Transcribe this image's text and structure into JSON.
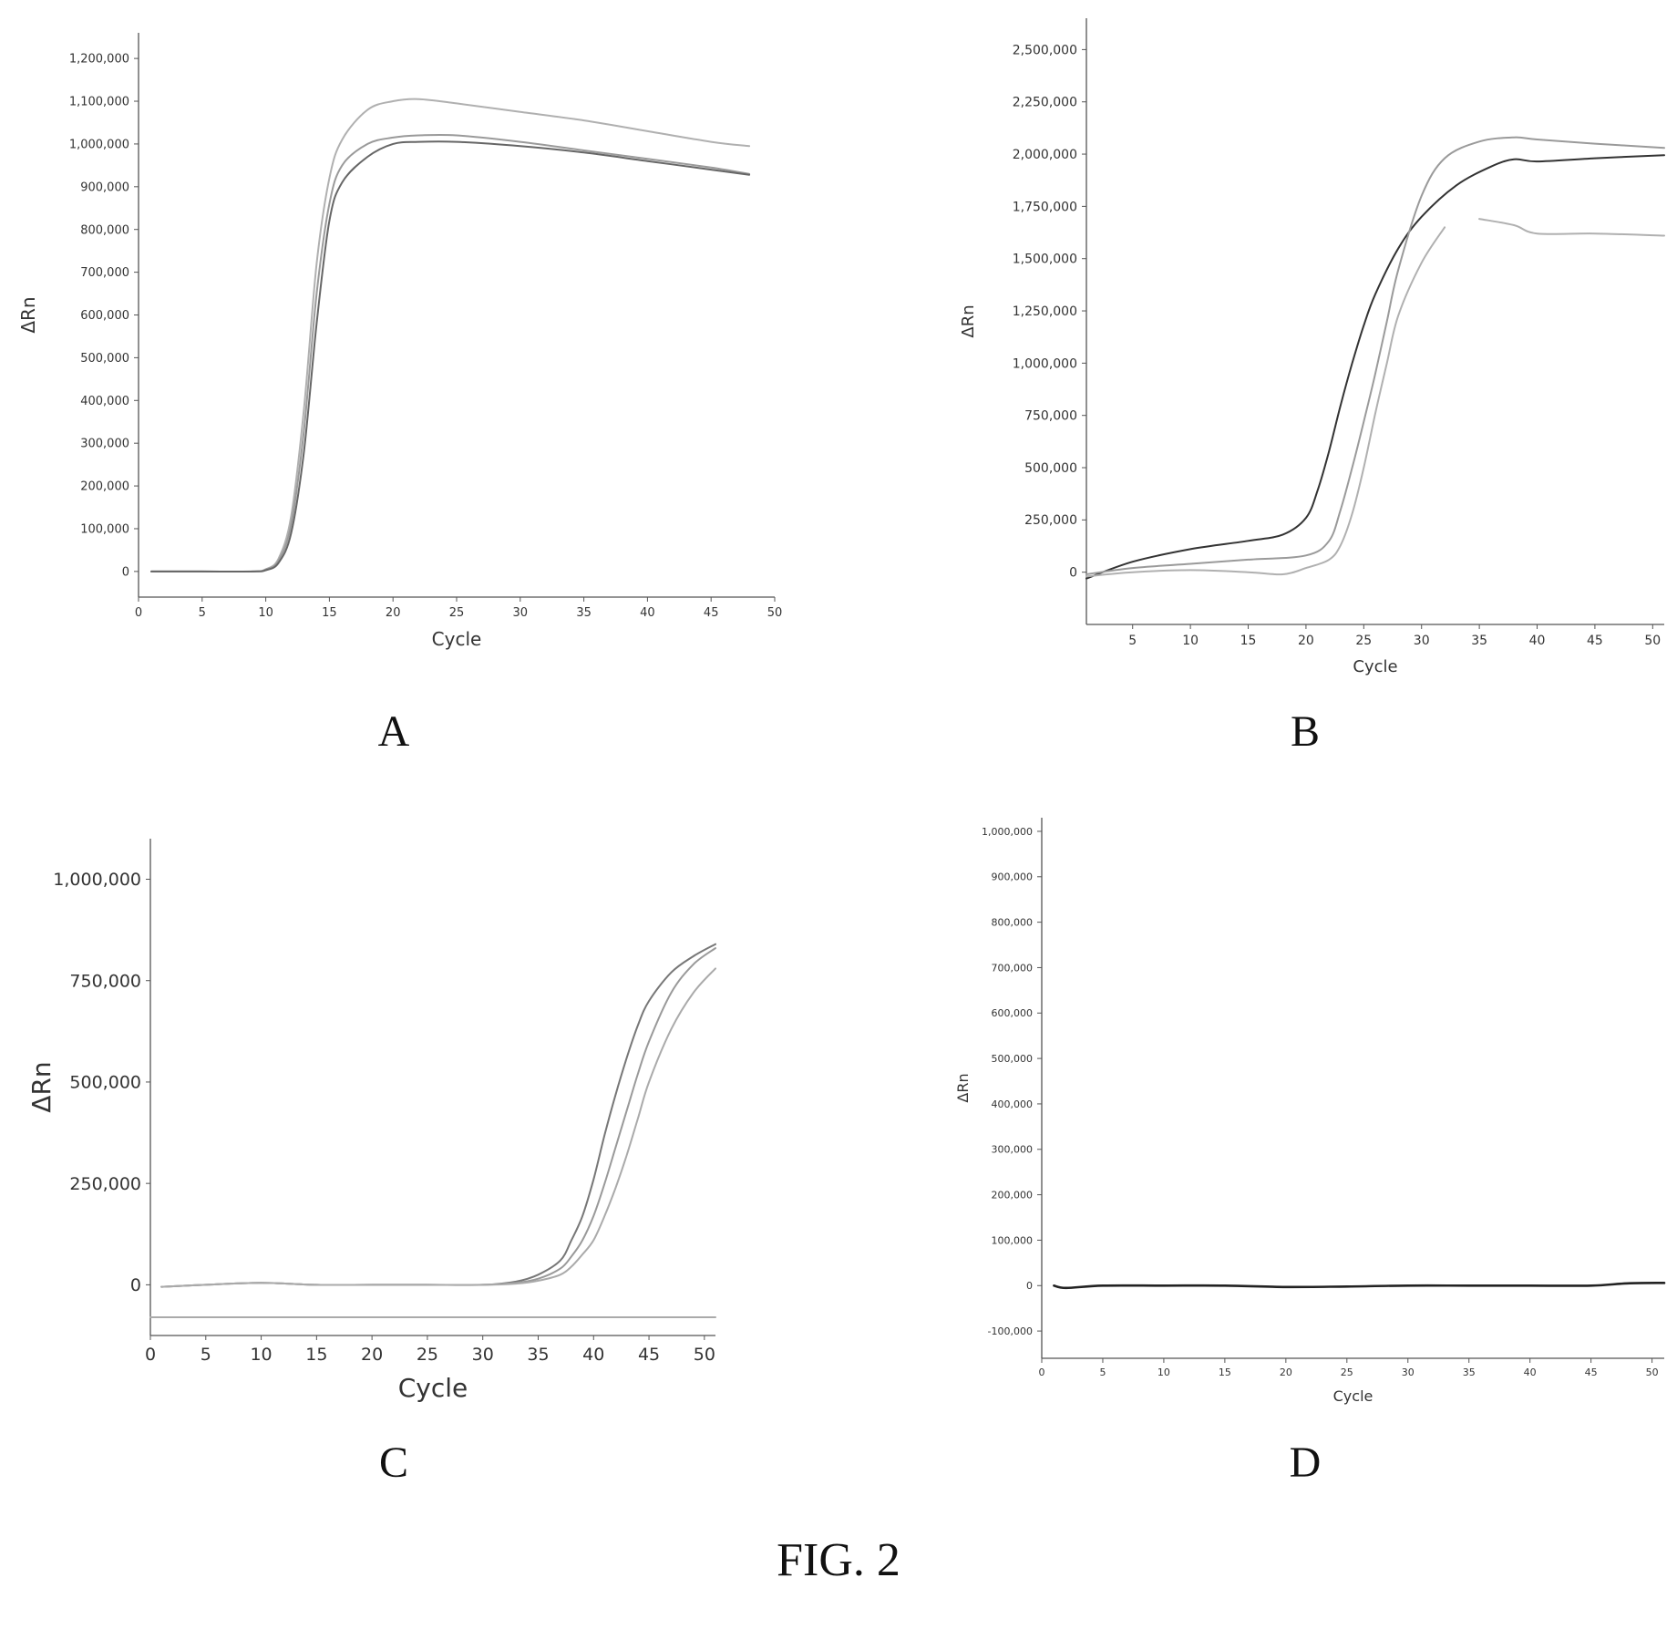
{
  "figure": {
    "caption": "FIG. 2"
  },
  "chart_data": [
    {
      "panel": "A",
      "type": "line",
      "xlabel": "Cycle",
      "ylabel": "ΔRn",
      "xlim": [
        0,
        50
      ],
      "ylim": [
        -60000,
        1260000
      ],
      "xticks": [
        0,
        5,
        10,
        15,
        20,
        25,
        30,
        35,
        40,
        45,
        50
      ],
      "xtick_labels": [
        "0",
        "5",
        "10",
        "15",
        "20",
        "25",
        "30",
        "35",
        "40",
        "45",
        "50"
      ],
      "yticks": [
        0,
        100000,
        200000,
        300000,
        400000,
        500000,
        600000,
        700000,
        800000,
        900000,
        1000000,
        1100000,
        1200000
      ],
      "ytick_labels": [
        "0",
        "100,000",
        "200,000",
        "300,000",
        "400,000",
        "500,000",
        "600,000",
        "700,000",
        "800,000",
        "900,000",
        "1,000,000",
        "1,100,000",
        "1,200,000"
      ],
      "grid": false,
      "series": [
        {
          "color": "#b0b0b0",
          "x": [
            1,
            5,
            9,
            10,
            11,
            12,
            13,
            14,
            15,
            16,
            18,
            20,
            22,
            25,
            30,
            35,
            40,
            45,
            48
          ],
          "y": [
            0,
            0,
            0,
            5000,
            30000,
            130000,
            380000,
            720000,
            920000,
            1010000,
            1080000,
            1100000,
            1105000,
            1095000,
            1075000,
            1055000,
            1030000,
            1005000,
            995000
          ]
        },
        {
          "color": "#9a9a9a",
          "x": [
            1,
            5,
            9,
            10,
            11,
            12,
            13,
            14,
            15,
            16,
            18,
            20,
            22,
            25,
            30,
            35,
            40,
            45,
            48
          ],
          "y": [
            0,
            0,
            0,
            5000,
            25000,
            110000,
            330000,
            650000,
            860000,
            950000,
            1000000,
            1015000,
            1020000,
            1020000,
            1005000,
            985000,
            965000,
            945000,
            930000
          ]
        },
        {
          "color": "#666666",
          "x": [
            1,
            5,
            9,
            10,
            11,
            12,
            13,
            14,
            15,
            16,
            18,
            20,
            22,
            25,
            30,
            35,
            40,
            45,
            48
          ],
          "y": [
            0,
            0,
            0,
            3000,
            20000,
            90000,
            280000,
            580000,
            820000,
            910000,
            970000,
            1000000,
            1005000,
            1005000,
            995000,
            980000,
            960000,
            940000,
            928000
          ]
        }
      ]
    },
    {
      "panel": "B",
      "type": "line",
      "xlabel": "Cycle",
      "ylabel": "ΔRn",
      "xlim": [
        1,
        51
      ],
      "ylim": [
        -250000,
        2650000
      ],
      "xticks": [
        5,
        10,
        15,
        20,
        25,
        30,
        35,
        40,
        45,
        50
      ],
      "xtick_labels": [
        "5",
        "10",
        "15",
        "20",
        "25",
        "30",
        "35",
        "40",
        "45",
        "50"
      ],
      "yticks": [
        0,
        250000,
        500000,
        750000,
        1000000,
        1250000,
        1500000,
        1750000,
        2000000,
        2250000,
        2500000
      ],
      "ytick_labels": [
        "0",
        "250,000",
        "500,000",
        "750,000",
        "1,000,000",
        "1,250,000",
        "1,500,000",
        "1,750,000",
        "2,000,000",
        "2,250,000",
        "2,500,000"
      ],
      "grid": false,
      "series": [
        {
          "color": "#333333",
          "x": [
            1,
            5,
            10,
            15,
            18,
            20,
            21,
            22,
            23,
            24,
            25,
            26,
            28,
            30,
            33,
            36,
            38,
            40,
            45,
            51
          ],
          "y": [
            -30000,
            50000,
            110000,
            150000,
            180000,
            260000,
            390000,
            580000,
            800000,
            1000000,
            1180000,
            1330000,
            1550000,
            1700000,
            1850000,
            1940000,
            1975000,
            1965000,
            1980000,
            1995000
          ]
        },
        {
          "color": "#9a9a9a",
          "x": [
            1,
            5,
            10,
            15,
            20,
            22,
            23,
            24,
            25,
            26,
            27,
            28,
            30,
            32,
            35,
            38,
            40,
            45,
            51
          ],
          "y": [
            -10000,
            20000,
            40000,
            60000,
            80000,
            150000,
            300000,
            500000,
            720000,
            950000,
            1200000,
            1450000,
            1800000,
            1980000,
            2060000,
            2080000,
            2070000,
            2050000,
            2030000
          ]
        },
        {
          "color": "#b0b0b0",
          "x": [
            1,
            5,
            10,
            15,
            18,
            20,
            22,
            23,
            24,
            25,
            26,
            27,
            28,
            30,
            32
          ],
          "y": [
            -20000,
            0,
            10000,
            0,
            -10000,
            20000,
            60000,
            130000,
            280000,
            500000,
            760000,
            1000000,
            1230000,
            1480000,
            1650000
          ]
        },
        {
          "color": "#b0b0b0",
          "x": [
            35,
            38,
            40,
            45,
            51
          ],
          "y": [
            1690000,
            1660000,
            1620000,
            1620000,
            1610000
          ]
        }
      ]
    },
    {
      "panel": "C",
      "type": "line",
      "xlabel": "Cycle",
      "ylabel": "ΔRn",
      "xlim": [
        0,
        51
      ],
      "ylim": [
        -125000,
        1100000
      ],
      "xticks": [
        0,
        5,
        10,
        15,
        20,
        25,
        30,
        35,
        40,
        45,
        50
      ],
      "xtick_labels": [
        "0",
        "5",
        "10",
        "15",
        "20",
        "25",
        "30",
        "35",
        "40",
        "45",
        "50"
      ],
      "yticks": [
        0,
        250000,
        500000,
        750000,
        1000000
      ],
      "ytick_labels": [
        "0",
        "250,000",
        "500,000",
        "750,000",
        "1,000,000"
      ],
      "grid": false,
      "series": [
        {
          "color": "#777777",
          "x": [
            1,
            5,
            10,
            15,
            20,
            25,
            30,
            33,
            35,
            37,
            38,
            39,
            40,
            41,
            42,
            43,
            44,
            45,
            47,
            49,
            51
          ],
          "y": [
            -5000,
            0,
            5000,
            0,
            0,
            0,
            0,
            8000,
            25000,
            60000,
            110000,
            170000,
            260000,
            370000,
            470000,
            560000,
            640000,
            700000,
            770000,
            810000,
            840000
          ]
        },
        {
          "color": "#999999",
          "x": [
            1,
            5,
            10,
            15,
            20,
            25,
            30,
            33,
            35,
            37,
            38,
            39,
            40,
            41,
            42,
            43,
            44,
            45,
            47,
            49,
            51
          ],
          "y": [
            -5000,
            0,
            5000,
            0,
            0,
            0,
            0,
            5000,
            15000,
            40000,
            70000,
            110000,
            170000,
            250000,
            340000,
            430000,
            520000,
            600000,
            720000,
            790000,
            830000
          ]
        },
        {
          "color": "#aaaaaa",
          "x": [
            1,
            5,
            10,
            15,
            20,
            25,
            30,
            33,
            35,
            37,
            38,
            39,
            40,
            41,
            42,
            43,
            44,
            45,
            47,
            49,
            51
          ],
          "y": [
            -5000,
            0,
            5000,
            0,
            0,
            0,
            0,
            3000,
            10000,
            25000,
            45000,
            75000,
            110000,
            170000,
            240000,
            320000,
            410000,
            500000,
            630000,
            720000,
            780000
          ]
        },
        {
          "color": "#aaaaaa",
          "x": [
            0,
            51
          ],
          "y": [
            -80000,
            -80000
          ]
        }
      ]
    },
    {
      "panel": "D",
      "type": "line",
      "xlabel": "Cycle",
      "ylabel": "ΔRn",
      "xlim": [
        0,
        51
      ],
      "ylim": [
        -160000,
        1030000
      ],
      "xticks": [
        0,
        5,
        10,
        15,
        20,
        25,
        30,
        35,
        40,
        45,
        50
      ],
      "xtick_labels": [
        "0",
        "5",
        "10",
        "15",
        "20",
        "25",
        "30",
        "35",
        "40",
        "45",
        "50"
      ],
      "yticks": [
        -100000,
        0,
        100000,
        200000,
        300000,
        400000,
        500000,
        600000,
        700000,
        800000,
        900000,
        1000000
      ],
      "ytick_labels": [
        "-100,000",
        "0",
        "100,000",
        "200,000",
        "300,000",
        "400,000",
        "500,000",
        "600,000",
        "700,000",
        "800,000",
        "900,000",
        "1,000,000"
      ],
      "grid": false,
      "series": [
        {
          "color": "#222222",
          "x": [
            1,
            2,
            5,
            10,
            15,
            20,
            25,
            30,
            35,
            40,
            45,
            48,
            51
          ],
          "y": [
            0,
            -5000,
            0,
            0,
            0,
            -3000,
            -2000,
            0,
            0,
            0,
            0,
            5000,
            6000
          ]
        }
      ]
    }
  ]
}
